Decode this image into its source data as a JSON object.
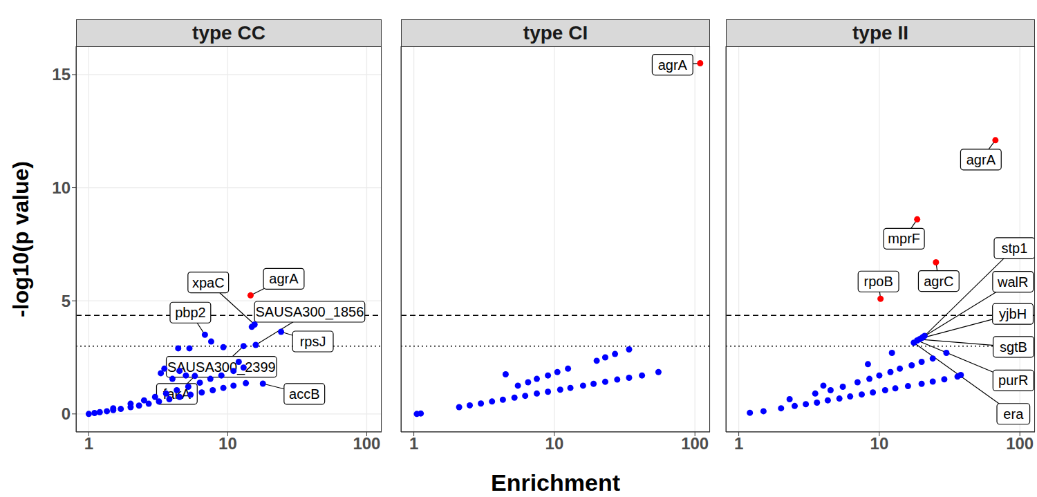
{
  "chart_data": {
    "type": "scatter",
    "x_label": "Enrichment",
    "y_label": "-log10(p value)",
    "log": "x",
    "grid": true,
    "xlim": [
      0.81,
      128
    ],
    "xticks": [
      1,
      10,
      100
    ],
    "ylim": [
      -0.8,
      16.25
    ],
    "yticks": [
      0,
      5,
      10,
      15
    ],
    "reference_lines": [
      {
        "y": 4.36,
        "line_style": "dashed"
      },
      {
        "y": 3,
        "line_style": "dotted"
      }
    ],
    "facets": [
      {
        "title": "type CC",
        "x": [
          1,
          1.1,
          1.2,
          1.35,
          1.5,
          1.7,
          2,
          2.3,
          2.7,
          3.2,
          3.8,
          4.5,
          5.4,
          6.5,
          7.8,
          9.3,
          11,
          13.5,
          1.5,
          2,
          2.5,
          3,
          3.6,
          4.3,
          5.2,
          6.3,
          7.5,
          9,
          11,
          13,
          3.3,
          3.5,
          4,
          4.5,
          5,
          5.8,
          4.4,
          5.3,
          6.85,
          7.6,
          9.3,
          12,
          17.9,
          13,
          15.6,
          14.9,
          15.9,
          24.2,
          14.6
        ],
        "values": [
          0,
          0.04,
          0.08,
          0.12,
          0.17,
          0.22,
          0.3,
          0.37,
          0.45,
          0.55,
          0.65,
          0.75,
          0.85,
          0.95,
          1.05,
          1.15,
          1.25,
          1.36,
          0.25,
          0.45,
          0.6,
          0.75,
          0.9,
          1.05,
          1.2,
          1.38,
          1.55,
          1.7,
          1.9,
          2.05,
          1.8,
          2.0,
          1.55,
          1.9,
          1.7,
          1.68,
          2.9,
          2.9,
          3.5,
          3.2,
          2.95,
          2.3,
          1.34,
          3.0,
          3.95,
          3.85,
          3.05,
          3.63,
          5.24
        ],
        "colors": [
          "#0000ff",
          "#0000ff",
          "#0000ff",
          "#0000ff",
          "#0000ff",
          "#0000ff",
          "#0000ff",
          "#0000ff",
          "#0000ff",
          "#0000ff",
          "#0000ff",
          "#0000ff",
          "#0000ff",
          "#0000ff",
          "#0000ff",
          "#0000ff",
          "#0000ff",
          "#0000ff",
          "#0000ff",
          "#0000ff",
          "#0000ff",
          "#0000ff",
          "#0000ff",
          "#0000ff",
          "#0000ff",
          "#0000ff",
          "#0000ff",
          "#0000ff",
          "#0000ff",
          "#0000ff",
          "#0000ff",
          "#0000ff",
          "#0000ff",
          "#0000ff",
          "#0000ff",
          "#0000ff",
          "#0000ff",
          "#0000ff",
          "#0000ff",
          "#0000ff",
          "#0000ff",
          "#0000ff",
          "#0000ff",
          "#0000ff",
          "#0000ff",
          "#0000ff",
          "#0000ff",
          "#0000ff",
          "#ff0000"
        ],
        "annotations": [
          {
            "text": "agrA",
            "x": 14.6,
            "y": 5.24
          },
          {
            "text": "xpaC",
            "x": 15.6,
            "y": 3.95
          },
          {
            "text": "SAUSA300_1856",
            "x": 15.9,
            "y": 3.05
          },
          {
            "text": "pbp2",
            "x": 6.85,
            "y": 3.5
          },
          {
            "text": "rpsJ",
            "x": 24.2,
            "y": 3.63
          },
          {
            "text": "SAUSA300_2399",
            "x": 13,
            "y": 3.0
          },
          {
            "text": "fakA",
            "x": 5.8,
            "y": 1.68
          },
          {
            "text": "accB",
            "x": 17.9,
            "y": 1.34
          }
        ]
      },
      {
        "title": "type CI",
        "x": [
          1.05,
          1.12,
          2.1,
          2.5,
          3,
          3.6,
          4.3,
          5.2,
          6.2,
          7.5,
          9,
          11,
          13,
          16,
          19,
          23,
          28,
          34,
          42,
          55,
          4.5,
          5.5,
          6.5,
          7.5,
          9,
          10.5,
          12.5,
          20,
          23,
          27,
          34,
          109
        ],
        "values": [
          0,
          0.02,
          0.3,
          0.38,
          0.46,
          0.55,
          0.63,
          0.72,
          0.8,
          0.9,
          0.98,
          1.07,
          1.15,
          1.25,
          1.33,
          1.42,
          1.52,
          1.6,
          1.7,
          1.85,
          1.75,
          1.25,
          1.4,
          1.55,
          1.7,
          1.85,
          2.0,
          2.35,
          2.5,
          2.65,
          2.85,
          15.5
        ],
        "colors": [
          "#0000ff",
          "#0000ff",
          "#0000ff",
          "#0000ff",
          "#0000ff",
          "#0000ff",
          "#0000ff",
          "#0000ff",
          "#0000ff",
          "#0000ff",
          "#0000ff",
          "#0000ff",
          "#0000ff",
          "#0000ff",
          "#0000ff",
          "#0000ff",
          "#0000ff",
          "#0000ff",
          "#0000ff",
          "#0000ff",
          "#0000ff",
          "#0000ff",
          "#0000ff",
          "#0000ff",
          "#0000ff",
          "#0000ff",
          "#0000ff",
          "#0000ff",
          "#0000ff",
          "#0000ff",
          "#0000ff",
          "#ff0000"
        ],
        "annotations": [
          {
            "text": "agrA",
            "x": 109,
            "y": 15.5
          }
        ]
      },
      {
        "title": "type II",
        "x": [
          1.2,
          1.5,
          2,
          2.5,
          3,
          3.6,
          4.3,
          5.2,
          6.2,
          7.5,
          9,
          11,
          13,
          16,
          20,
          24,
          29,
          36,
          38,
          2.3,
          3.5,
          4.5,
          5.5,
          7,
          8.5,
          10,
          12,
          14,
          17,
          20,
          24,
          4,
          8.3,
          12.3,
          30,
          17.6,
          18.6,
          19.3,
          20,
          20.5,
          21,
          10.2,
          25.3,
          18.6,
          67
        ],
        "values": [
          0.05,
          0.12,
          0.25,
          0.35,
          0.43,
          0.5,
          0.6,
          0.68,
          0.77,
          0.86,
          0.95,
          1.05,
          1.13,
          1.23,
          1.33,
          1.43,
          1.53,
          1.65,
          1.72,
          0.65,
          0.9,
          1.05,
          1.2,
          1.4,
          1.55,
          1.7,
          1.85,
          2.0,
          2.15,
          2.3,
          2.45,
          1.25,
          2.2,
          2.7,
          2.7,
          3.15,
          3.25,
          3.3,
          3.35,
          3.4,
          3.45,
          5.09,
          6.7,
          8.6,
          12.1
        ],
        "colors": [
          "#0000ff",
          "#0000ff",
          "#0000ff",
          "#0000ff",
          "#0000ff",
          "#0000ff",
          "#0000ff",
          "#0000ff",
          "#0000ff",
          "#0000ff",
          "#0000ff",
          "#0000ff",
          "#0000ff",
          "#0000ff",
          "#0000ff",
          "#0000ff",
          "#0000ff",
          "#0000ff",
          "#0000ff",
          "#0000ff",
          "#0000ff",
          "#0000ff",
          "#0000ff",
          "#0000ff",
          "#0000ff",
          "#0000ff",
          "#0000ff",
          "#0000ff",
          "#0000ff",
          "#0000ff",
          "#0000ff",
          "#0000ff",
          "#0000ff",
          "#0000ff",
          "#0000ff",
          "#0000ff",
          "#0000ff",
          "#0000ff",
          "#0000ff",
          "#0000ff",
          "#0000ff",
          "#ff0000",
          "#ff0000",
          "#ff0000",
          "#ff0000"
        ],
        "annotations": [
          {
            "text": "agrA",
            "x": 67,
            "y": 12.1
          },
          {
            "text": "mprF",
            "x": 18.6,
            "y": 8.6
          },
          {
            "text": "agrC",
            "x": 25.3,
            "y": 6.7
          },
          {
            "text": "rpoB",
            "x": 10.2,
            "y": 5.09
          },
          {
            "text": "stp1",
            "x": 21,
            "y": 3.45
          },
          {
            "text": "walR",
            "x": 20.5,
            "y": 3.4
          },
          {
            "text": "yjbH",
            "x": 20,
            "y": 3.35
          },
          {
            "text": "sgtB",
            "x": 19.3,
            "y": 3.3
          },
          {
            "text": "purR",
            "x": 18.6,
            "y": 3.25
          },
          {
            "text": "era",
            "x": 17.6,
            "y": 3.15
          }
        ]
      }
    ]
  }
}
